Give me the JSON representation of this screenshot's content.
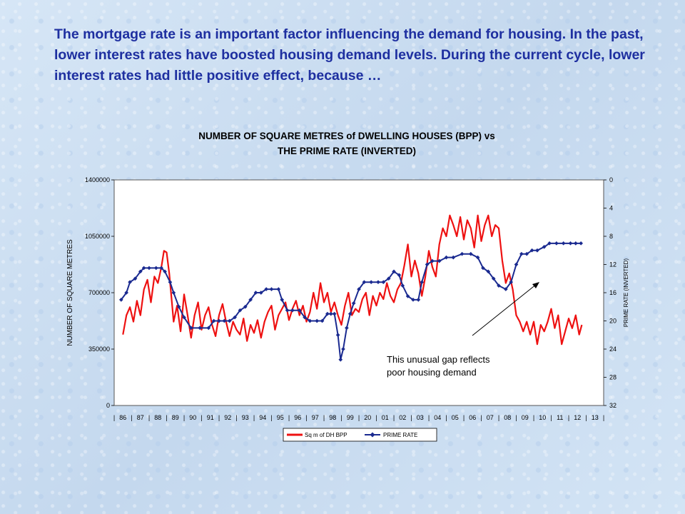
{
  "intro_text": "The mortgage rate is an important factor influencing the demand for housing.  In the past, lower interest rates have boosted housing demand levels.  During the current cycle, lower interest rates had little positive effect, because …",
  "chart_data": {
    "type": "line",
    "title_line1": "NUMBER OF SQUARE METRES of DWELLING HOUSES (BPP) vs",
    "title_line2": "THE PRIME RATE (INVERTED)",
    "ylabel": "NUMBER OF SQUARE METRES",
    "y2label": "PRIME RATE (INVERTED)",
    "ylim": [
      0,
      1400000
    ],
    "y_ticks": [
      "1400000",
      "1050000",
      "700000",
      "350000",
      "0"
    ],
    "y2lim": [
      0,
      32
    ],
    "y2_inverted": true,
    "y2_ticks": [
      "0",
      "4",
      "8",
      "12",
      "16",
      "20",
      "24",
      "28",
      "32"
    ],
    "x_categories": [
      "86",
      "87",
      "88",
      "89",
      "90",
      "91",
      "92",
      "93",
      "94",
      "95",
      "96",
      "97",
      "98",
      "99",
      "20",
      "01",
      "02",
      "03",
      "04",
      "05",
      "06",
      "07",
      "08",
      "09",
      "10",
      "11",
      "12",
      "13"
    ],
    "legend_position": "bottom",
    "annotation_line1": "This unusual gap reflects",
    "annotation_line2": "poor housing demand",
    "series": [
      {
        "name": "Sq m of DH BPP",
        "color": "#ee1111",
        "points": [
          [
            1986.1,
            440000
          ],
          [
            1986.3,
            560000
          ],
          [
            1986.5,
            610000
          ],
          [
            1986.7,
            520000
          ],
          [
            1986.9,
            650000
          ],
          [
            1987.1,
            560000
          ],
          [
            1987.3,
            720000
          ],
          [
            1987.5,
            780000
          ],
          [
            1987.7,
            640000
          ],
          [
            1987.9,
            800000
          ],
          [
            1988.1,
            760000
          ],
          [
            1988.3,
            860000
          ],
          [
            1988.45,
            960000
          ],
          [
            1988.6,
            950000
          ],
          [
            1988.75,
            820000
          ],
          [
            1988.9,
            640000
          ],
          [
            1989.0,
            520000
          ],
          [
            1989.2,
            620000
          ],
          [
            1989.4,
            460000
          ],
          [
            1989.6,
            690000
          ],
          [
            1989.8,
            560000
          ],
          [
            1990.0,
            420000
          ],
          [
            1990.2,
            560000
          ],
          [
            1990.4,
            640000
          ],
          [
            1990.6,
            470000
          ],
          [
            1990.8,
            560000
          ],
          [
            1991.0,
            610000
          ],
          [
            1991.2,
            500000
          ],
          [
            1991.4,
            430000
          ],
          [
            1991.6,
            560000
          ],
          [
            1991.8,
            630000
          ],
          [
            1992.0,
            520000
          ],
          [
            1992.2,
            430000
          ],
          [
            1992.4,
            520000
          ],
          [
            1992.6,
            470000
          ],
          [
            1992.8,
            440000
          ],
          [
            1993.0,
            540000
          ],
          [
            1993.2,
            400000
          ],
          [
            1993.4,
            500000
          ],
          [
            1993.6,
            450000
          ],
          [
            1993.8,
            530000
          ],
          [
            1994.0,
            420000
          ],
          [
            1994.2,
            520000
          ],
          [
            1994.4,
            580000
          ],
          [
            1994.6,
            620000
          ],
          [
            1994.8,
            470000
          ],
          [
            1995.0,
            560000
          ],
          [
            1995.2,
            600000
          ],
          [
            1995.4,
            640000
          ],
          [
            1995.6,
            530000
          ],
          [
            1995.8,
            600000
          ],
          [
            1996.0,
            650000
          ],
          [
            1996.2,
            560000
          ],
          [
            1996.4,
            620000
          ],
          [
            1996.6,
            520000
          ],
          [
            1996.8,
            580000
          ],
          [
            1997.0,
            700000
          ],
          [
            1997.2,
            600000
          ],
          [
            1997.4,
            760000
          ],
          [
            1997.6,
            640000
          ],
          [
            1997.8,
            700000
          ],
          [
            1998.0,
            580000
          ],
          [
            1998.2,
            640000
          ],
          [
            1998.4,
            560000
          ],
          [
            1998.6,
            500000
          ],
          [
            1998.8,
            620000
          ],
          [
            1999.0,
            700000
          ],
          [
            1999.2,
            560000
          ],
          [
            1999.4,
            600000
          ],
          [
            1999.6,
            580000
          ],
          [
            1999.8,
            660000
          ],
          [
            2000.0,
            700000
          ],
          [
            2000.2,
            560000
          ],
          [
            2000.4,
            680000
          ],
          [
            2000.6,
            620000
          ],
          [
            2000.8,
            700000
          ],
          [
            2001.0,
            660000
          ],
          [
            2001.2,
            760000
          ],
          [
            2001.4,
            680000
          ],
          [
            2001.6,
            640000
          ],
          [
            2001.8,
            720000
          ],
          [
            2002.0,
            760000
          ],
          [
            2002.2,
            870000
          ],
          [
            2002.4,
            1000000
          ],
          [
            2002.6,
            800000
          ],
          [
            2002.8,
            900000
          ],
          [
            2003.0,
            820000
          ],
          [
            2003.2,
            680000
          ],
          [
            2003.4,
            800000
          ],
          [
            2003.6,
            960000
          ],
          [
            2003.8,
            860000
          ],
          [
            2004.0,
            800000
          ],
          [
            2004.2,
            1000000
          ],
          [
            2004.4,
            1100000
          ],
          [
            2004.6,
            1050000
          ],
          [
            2004.8,
            1180000
          ],
          [
            2005.0,
            1120000
          ],
          [
            2005.2,
            1050000
          ],
          [
            2005.4,
            1170000
          ],
          [
            2005.6,
            1030000
          ],
          [
            2005.8,
            1150000
          ],
          [
            2006.0,
            1100000
          ],
          [
            2006.2,
            980000
          ],
          [
            2006.4,
            1180000
          ],
          [
            2006.6,
            1020000
          ],
          [
            2006.8,
            1120000
          ],
          [
            2007.0,
            1180000
          ],
          [
            2007.2,
            1050000
          ],
          [
            2007.4,
            1120000
          ],
          [
            2007.6,
            1100000
          ],
          [
            2007.8,
            900000
          ],
          [
            2008.0,
            760000
          ],
          [
            2008.2,
            820000
          ],
          [
            2008.4,
            720000
          ],
          [
            2008.6,
            560000
          ],
          [
            2008.8,
            520000
          ],
          [
            2009.0,
            460000
          ],
          [
            2009.2,
            520000
          ],
          [
            2009.4,
            440000
          ],
          [
            2009.6,
            520000
          ],
          [
            2009.8,
            380000
          ],
          [
            2010.0,
            500000
          ],
          [
            2010.2,
            460000
          ],
          [
            2010.4,
            520000
          ],
          [
            2010.6,
            600000
          ],
          [
            2010.8,
            480000
          ],
          [
            2011.0,
            560000
          ],
          [
            2011.2,
            380000
          ],
          [
            2011.4,
            460000
          ],
          [
            2011.6,
            540000
          ],
          [
            2011.8,
            480000
          ],
          [
            2012.0,
            560000
          ],
          [
            2012.2,
            440000
          ],
          [
            2012.35,
            500000
          ]
        ]
      },
      {
        "name": "PRIME RATE",
        "color": "#1a2a90",
        "points": [
          [
            1986.0,
            17.0
          ],
          [
            1986.3,
            16.0
          ],
          [
            1986.5,
            14.5
          ],
          [
            1986.8,
            14.0
          ],
          [
            1987.1,
            13.0
          ],
          [
            1987.3,
            12.5
          ],
          [
            1987.6,
            12.5
          ],
          [
            1988.0,
            12.5
          ],
          [
            1988.3,
            12.5
          ],
          [
            1988.5,
            13.0
          ],
          [
            1988.8,
            14.5
          ],
          [
            1989.0,
            16.0
          ],
          [
            1989.3,
            18.0
          ],
          [
            1989.6,
            19.5
          ],
          [
            1990.0,
            21.0
          ],
          [
            1990.5,
            21.0
          ],
          [
            1991.0,
            21.0
          ],
          [
            1991.3,
            20.0
          ],
          [
            1991.6,
            20.0
          ],
          [
            1991.9,
            20.0
          ],
          [
            1992.2,
            20.0
          ],
          [
            1992.5,
            19.5
          ],
          [
            1992.8,
            18.5
          ],
          [
            1993.1,
            18.0
          ],
          [
            1993.4,
            17.0
          ],
          [
            1993.7,
            16.0
          ],
          [
            1994.0,
            16.0
          ],
          [
            1994.3,
            15.5
          ],
          [
            1994.6,
            15.5
          ],
          [
            1995.0,
            15.5
          ],
          [
            1995.2,
            17.0
          ],
          [
            1995.5,
            18.5
          ],
          [
            1995.8,
            18.5
          ],
          [
            1996.2,
            18.5
          ],
          [
            1996.5,
            19.5
          ],
          [
            1996.8,
            20.0
          ],
          [
            1997.2,
            20.0
          ],
          [
            1997.5,
            20.0
          ],
          [
            1997.8,
            19.0
          ],
          [
            1998.0,
            19.0
          ],
          [
            1998.2,
            19.0
          ],
          [
            1998.4,
            22.0
          ],
          [
            1998.55,
            25.5
          ],
          [
            1998.7,
            24.0
          ],
          [
            1998.9,
            21.0
          ],
          [
            1999.1,
            19.0
          ],
          [
            1999.3,
            17.5
          ],
          [
            1999.6,
            15.5
          ],
          [
            1999.9,
            14.5
          ],
          [
            2000.3,
            14.5
          ],
          [
            2000.7,
            14.5
          ],
          [
            2001.0,
            14.5
          ],
          [
            2001.3,
            14.0
          ],
          [
            2001.6,
            13.0
          ],
          [
            2001.9,
            13.5
          ],
          [
            2002.1,
            15.0
          ],
          [
            2002.4,
            16.5
          ],
          [
            2002.7,
            17.0
          ],
          [
            2003.0,
            17.0
          ],
          [
            2003.2,
            14.5
          ],
          [
            2003.5,
            12.0
          ],
          [
            2003.8,
            11.5
          ],
          [
            2004.2,
            11.5
          ],
          [
            2004.6,
            11.0
          ],
          [
            2005.0,
            11.0
          ],
          [
            2005.5,
            10.5
          ],
          [
            2006.0,
            10.5
          ],
          [
            2006.4,
            11.0
          ],
          [
            2006.7,
            12.5
          ],
          [
            2007.0,
            13.0
          ],
          [
            2007.3,
            14.0
          ],
          [
            2007.6,
            15.0
          ],
          [
            2008.0,
            15.5
          ],
          [
            2008.3,
            14.5
          ],
          [
            2008.6,
            12.0
          ],
          [
            2008.9,
            10.5
          ],
          [
            2009.2,
            10.5
          ],
          [
            2009.5,
            10.0
          ],
          [
            2009.8,
            10.0
          ],
          [
            2010.2,
            9.5
          ],
          [
            2010.5,
            9.0
          ],
          [
            2010.9,
            9.0
          ],
          [
            2011.3,
            9.0
          ],
          [
            2011.7,
            9.0
          ],
          [
            2012.0,
            9.0
          ],
          [
            2012.3,
            9.0
          ]
        ]
      }
    ]
  }
}
